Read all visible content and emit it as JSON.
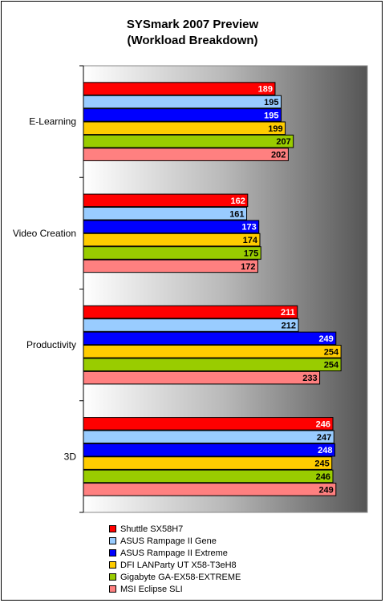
{
  "chart_data": {
    "type": "bar",
    "orientation": "horizontal",
    "title": "SYSmark 2007 Preview",
    "subtitle": "(Workload Breakdown)",
    "categories": [
      "E-Learning",
      "Video Creation",
      "Productivity",
      "3D"
    ],
    "xlim": [
      0,
      280
    ],
    "grid": false,
    "legend_position": "bottom",
    "series": [
      {
        "name": "Shuttle SX58H7",
        "color": "#ff0000",
        "values": [
          189,
          162,
          211,
          246
        ]
      },
      {
        "name": "ASUS Rampage II Gene",
        "color": "#99ccff",
        "values": [
          195,
          161,
          212,
          247
        ]
      },
      {
        "name": "ASUS Rampage II Extreme",
        "color": "#0000ff",
        "values": [
          195,
          173,
          249,
          248
        ]
      },
      {
        "name": "DFI LANParty UT X58-T3eH8",
        "color": "#ffcc00",
        "values": [
          199,
          174,
          254,
          245
        ]
      },
      {
        "name": "Gigabyte GA-EX58-EXTREME",
        "color": "#99cc00",
        "values": [
          207,
          175,
          254,
          246
        ]
      },
      {
        "name": "MSI Eclipse SLI",
        "color": "#ff8080",
        "values": [
          202,
          172,
          233,
          249
        ]
      }
    ]
  }
}
